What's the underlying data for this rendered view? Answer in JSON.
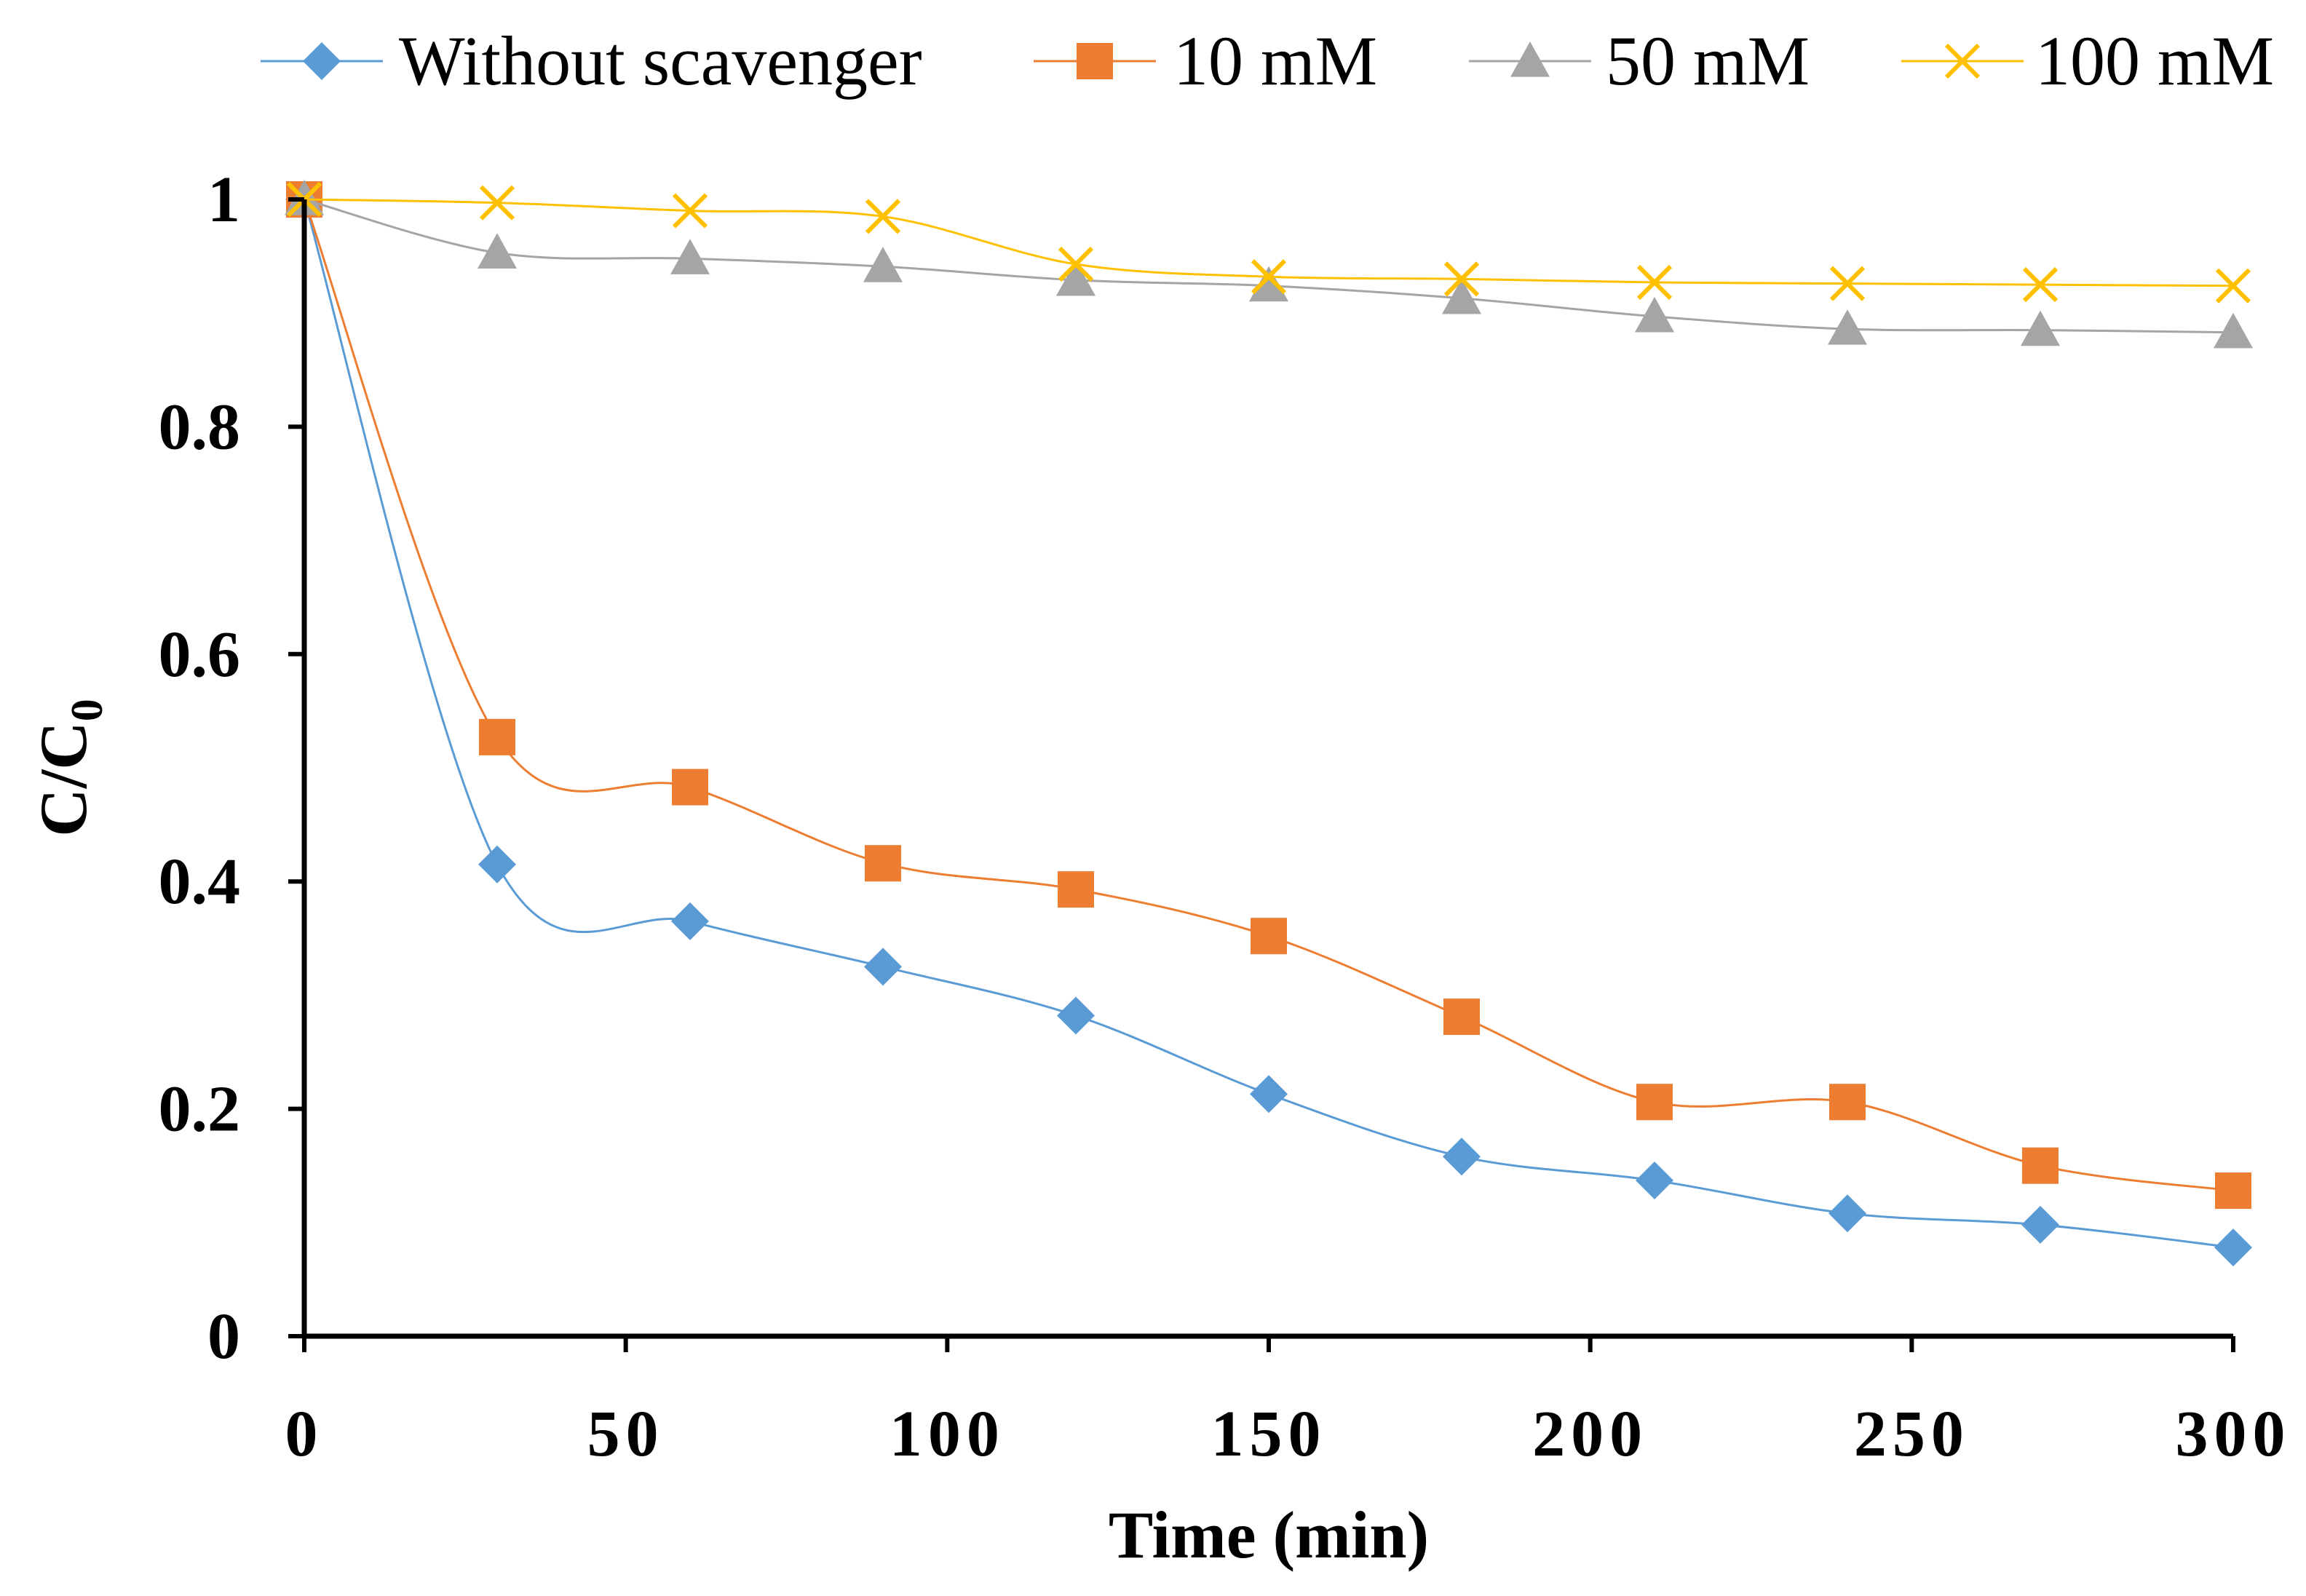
{
  "chart_data": {
    "type": "line",
    "title": "",
    "xlabel": "Time (min)",
    "ylabel": {
      "main": "C/C",
      "subscript": "0"
    },
    "xlim": [
      0,
      300
    ],
    "ylim": [
      0,
      1
    ],
    "x_ticks": [
      "0",
      "50",
      "100",
      "150",
      "200",
      "250",
      "300"
    ],
    "y_ticks": [
      "0",
      "0.2",
      "0.4",
      "0.6",
      "0.8",
      "1"
    ],
    "x": [
      0,
      30,
      60,
      90,
      120,
      150,
      180,
      210,
      240,
      270,
      300
    ],
    "legend_position": "top",
    "grid": false,
    "series": [
      {
        "name": "Without scavenger",
        "marker": "diamond",
        "color": "#5b9bd5",
        "values": [
          1.0,
          0.415,
          0.365,
          0.325,
          0.282,
          0.213,
          0.158,
          0.137,
          0.108,
          0.098,
          0.078
        ]
      },
      {
        "name": "10 mM",
        "marker": "square",
        "color": "#ed7d31",
        "values": [
          1.0,
          0.527,
          0.483,
          0.416,
          0.393,
          0.352,
          0.281,
          0.206,
          0.206,
          0.15,
          0.128
        ]
      },
      {
        "name": "50 mM",
        "marker": "triangle",
        "color": "#a5a5a5",
        "values": [
          1.0,
          0.953,
          0.948,
          0.941,
          0.929,
          0.924,
          0.913,
          0.897,
          0.886,
          0.885,
          0.883
        ]
      },
      {
        "name": "100 mM",
        "marker": "x",
        "color": "#ffc000",
        "values": [
          1.0,
          0.997,
          0.99,
          0.985,
          0.943,
          0.932,
          0.93,
          0.927,
          0.926,
          0.925,
          0.924
        ]
      }
    ]
  }
}
